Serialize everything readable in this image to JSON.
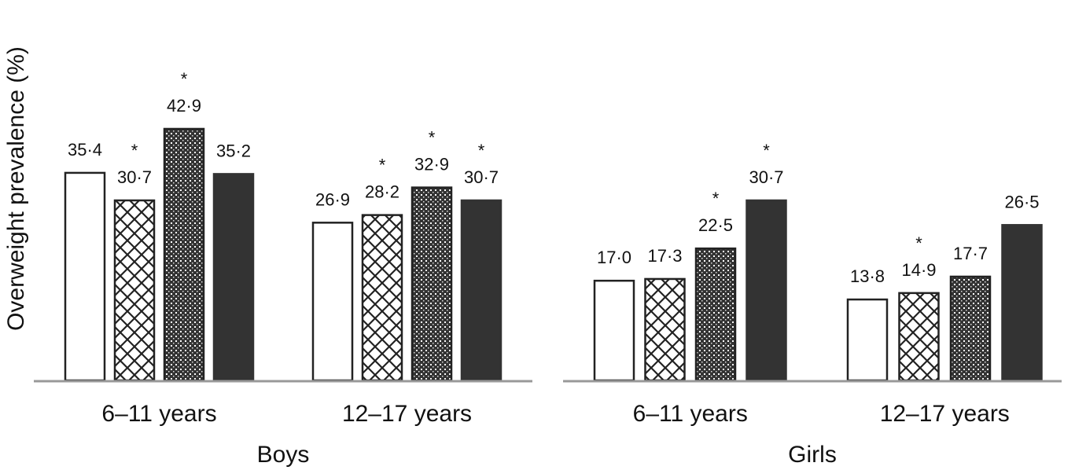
{
  "chart_data": {
    "type": "bar",
    "ylabel": "Overweight prevalence (%)",
    "ylim": [
      0,
      45
    ],
    "grid": false,
    "legend": "none",
    "panels": [
      {
        "name": "Boys",
        "categories": [
          "6–11 years",
          "12–17 years"
        ],
        "series_values": [
          [
            35.4,
            30.7,
            42.9,
            35.2
          ],
          [
            26.9,
            28.2,
            32.9,
            30.7
          ]
        ],
        "labels": [
          [
            "35·4",
            "30·7",
            "42·9",
            "35·2"
          ],
          [
            "26·9",
            "28·2",
            "32·9",
            "30·7"
          ]
        ],
        "significant": [
          [
            false,
            true,
            true,
            false
          ],
          [
            false,
            true,
            true,
            true
          ]
        ]
      },
      {
        "name": "Girls",
        "categories": [
          "6–11 years",
          "12–17 years"
        ],
        "series_values": [
          [
            17.0,
            17.3,
            22.5,
            30.7
          ],
          [
            13.8,
            14.9,
            17.7,
            26.5
          ]
        ],
        "labels": [
          [
            "17·0",
            "17·3",
            "22·5",
            "30·7"
          ],
          [
            "13·8",
            "14·9",
            "17·7",
            "26·5"
          ]
        ],
        "significant": [
          [
            false,
            false,
            true,
            true
          ],
          [
            false,
            true,
            false,
            false
          ]
        ]
      }
    ],
    "significance_marker": "*",
    "bar_styles": [
      "white",
      "crosshatch",
      "dense-dots",
      "solid-dark"
    ],
    "colors": {
      "bar_outline": "#222222",
      "solid": "#333333",
      "axis": "#999999"
    }
  }
}
